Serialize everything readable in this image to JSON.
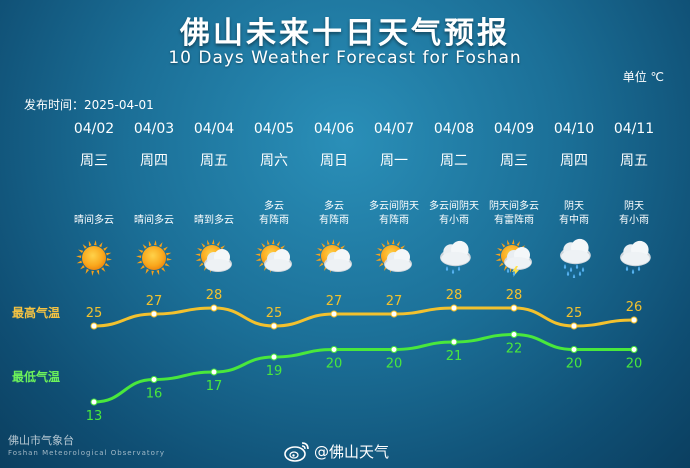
{
  "title": "佛山未来十日天气预报",
  "subtitle": "10 Days Weather Forecast for Foshan",
  "unit": "单位 ℃",
  "issued": "发布时间：2025-04-01",
  "labels": {
    "high": "最高气温",
    "low": "最低气温"
  },
  "footer": {
    "org_cn": "佛山市气象台",
    "org_en": "Foshan Meteorological Observatory",
    "weibo": "@佛山天气"
  },
  "colors": {
    "high": "#f2c12e",
    "low": "#49e83c"
  },
  "days": [
    {
      "date": "04/02",
      "weekday": "周三",
      "desc": [
        "",
        "晴间多云"
      ],
      "icon": "sun-icon",
      "high": 25,
      "low": 13
    },
    {
      "date": "04/03",
      "weekday": "周四",
      "desc": [
        "",
        "晴间多云"
      ],
      "icon": "sun-icon",
      "high": 27,
      "low": 16
    },
    {
      "date": "04/04",
      "weekday": "周五",
      "desc": [
        "",
        "晴到多云"
      ],
      "icon": "sun-cloud-icon",
      "high": 28,
      "low": 17
    },
    {
      "date": "04/05",
      "weekday": "周六",
      "desc": [
        "多云",
        "有阵雨"
      ],
      "icon": "sun-cloud-icon",
      "high": 25,
      "low": 19
    },
    {
      "date": "04/06",
      "weekday": "周日",
      "desc": [
        "多云",
        "有阵雨"
      ],
      "icon": "sun-cloud-icon",
      "high": 27,
      "low": 20
    },
    {
      "date": "04/07",
      "weekday": "周一",
      "desc": [
        "多云间阴天",
        "有阵雨"
      ],
      "icon": "sun-cloud-icon",
      "high": 27,
      "low": 20
    },
    {
      "date": "04/08",
      "weekday": "周二",
      "desc": [
        "多云间阴天",
        "有小雨"
      ],
      "icon": "cloud-rain-icon",
      "high": 28,
      "low": 21
    },
    {
      "date": "04/09",
      "weekday": "周三",
      "desc": [
        "阴天间多云",
        "有雷阵雨"
      ],
      "icon": "sun-thunder-icon",
      "high": 28,
      "low": 22
    },
    {
      "date": "04/10",
      "weekday": "周四",
      "desc": [
        "阴天",
        "有中雨"
      ],
      "icon": "cloud-heavy-rain-icon",
      "high": 25,
      "low": 20
    },
    {
      "date": "04/11",
      "weekday": "周五",
      "desc": [
        "阴天",
        "有小雨"
      ],
      "icon": "cloud-rain-icon",
      "high": 26,
      "low": 20
    }
  ]
}
